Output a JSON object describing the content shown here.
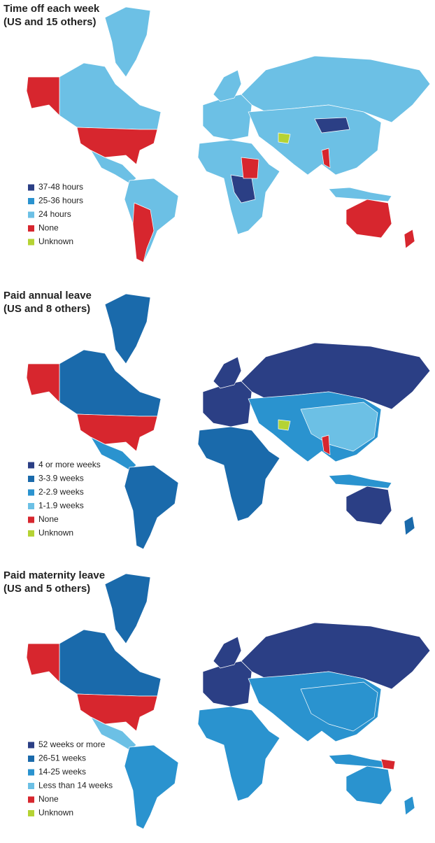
{
  "panels": [
    {
      "title": "Time off each week",
      "subtitle": "(US and 15 others)",
      "legend": [
        {
          "label": "37-48 hours",
          "color": "#2b3f85"
        },
        {
          "label": "25-36 hours",
          "color": "#2a93cf"
        },
        {
          "label": "24 hours",
          "color": "#6cc0e5"
        },
        {
          "label": "None",
          "color": "#d7262e"
        },
        {
          "label": "Unknown",
          "color": "#b5d334"
        }
      ]
    },
    {
      "title": "Paid annual leave",
      "subtitle": "(US and 8 others)",
      "legend": [
        {
          "label": "4 or more weeks",
          "color": "#2b3f85"
        },
        {
          "label": "3-3.9 weeks",
          "color": "#1a6aab"
        },
        {
          "label": "2-2.9 weeks",
          "color": "#2a93cf"
        },
        {
          "label": "1-1.9 weeks",
          "color": "#6cc0e5"
        },
        {
          "label": "None",
          "color": "#d7262e"
        },
        {
          "label": "Unknown",
          "color": "#b5d334"
        }
      ]
    },
    {
      "title": "Paid maternity leave",
      "subtitle": "(US and 5 others)",
      "legend": [
        {
          "label": "52 weeks or more",
          "color": "#2b3f85"
        },
        {
          "label": "26-51 weeks",
          "color": "#1a6aab"
        },
        {
          "label": "14-25 weeks",
          "color": "#2a93cf"
        },
        {
          "label": "Less than 14 weeks",
          "color": "#6cc0e5"
        },
        {
          "label": "None",
          "color": "#d7262e"
        },
        {
          "label": "Unknown",
          "color": "#b5d334"
        }
      ]
    }
  ]
}
